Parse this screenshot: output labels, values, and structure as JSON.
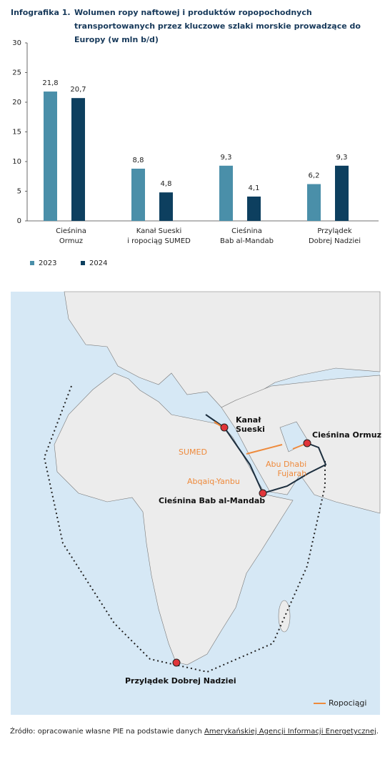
{
  "chart_data": {
    "type": "bar",
    "label": "Infografika 1.",
    "title": "Wolumen ropy naftowej i produktów ropopochodnych transportowanych przez kluczowe szlaki morskie prowadzące do Europy (w mln b/d)",
    "categories": [
      "Cieśnina\nOrmuz",
      "Kanał Sueski\ni ropociąg SUMED",
      "Cieśnina\nBab al-Mandab",
      "Przylądek\nDobrej Nadziei"
    ],
    "series": [
      {
        "name": "2023",
        "color": "#4a8fa9",
        "values": [
          21.8,
          8.8,
          9.3,
          6.2
        ],
        "value_labels": [
          "21,8",
          "8,8",
          "9,3",
          "6,2"
        ]
      },
      {
        "name": "2024",
        "color": "#0d3f5f",
        "values": [
          20.7,
          4.8,
          4.1,
          9.3
        ],
        "value_labels": [
          "20,7",
          "4,8",
          "4,1",
          "9,3"
        ]
      }
    ],
    "ylim": [
      0,
      30
    ],
    "yticks": [
      0,
      5,
      10,
      15,
      20,
      25,
      30
    ],
    "grid": false
  },
  "map": {
    "suez": "Kanał\nSueski",
    "sumed": "SUMED",
    "hormuz": "Cieśnina Ormuz",
    "abu_dhabi": "Abu Dhabi\nFujarah",
    "abqaiq": "Abqaiq-Yanbu",
    "bab": "Cieśnina Bab al-Mandab",
    "cape": "Przylądek Dobrej Nadziei",
    "legend": "Ropociągi"
  },
  "source": {
    "prefix": "Źródło: opracowanie własne PIE na podstawie danych ",
    "link": "Amerykańskiej Agencji Informacji Energetycznej",
    "suffix": "."
  }
}
